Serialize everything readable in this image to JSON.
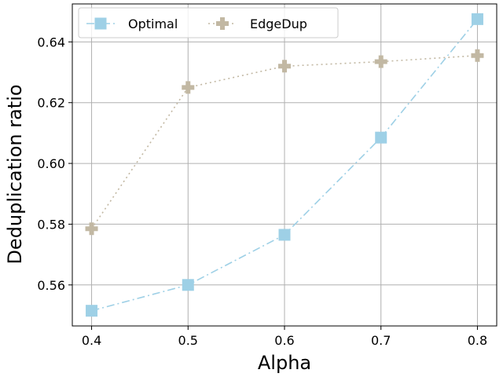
{
  "chart_data": {
    "type": "line",
    "title": "",
    "xlabel": "Alpha",
    "ylabel": "Deduplication ratio",
    "x": [
      0.4,
      0.5,
      0.6,
      0.7,
      0.8
    ],
    "x_tick_labels": [
      "0.4",
      "0.5",
      "0.6",
      "0.7",
      "0.8"
    ],
    "y_tick_labels": [
      "0.56",
      "0.58",
      "0.60",
      "0.62",
      "0.64"
    ],
    "y_ticks": [
      0.56,
      0.58,
      0.6,
      0.62,
      0.64
    ],
    "xlim": [
      0.38,
      0.82
    ],
    "ylim": [
      0.5465,
      0.6525
    ],
    "grid": true,
    "legend_position": "top-left",
    "series": [
      {
        "name": "Optimal",
        "values": [
          0.5515,
          0.56,
          0.5765,
          0.6085,
          0.6475
        ],
        "color": "#9ed0e6",
        "line_style": "dash-dot",
        "marker": "square"
      },
      {
        "name": "EdgeDup",
        "values": [
          0.5785,
          0.625,
          0.632,
          0.6335,
          0.6355
        ],
        "color": "#c2b8a3",
        "line_style": "dotted",
        "marker": "plus"
      }
    ]
  }
}
